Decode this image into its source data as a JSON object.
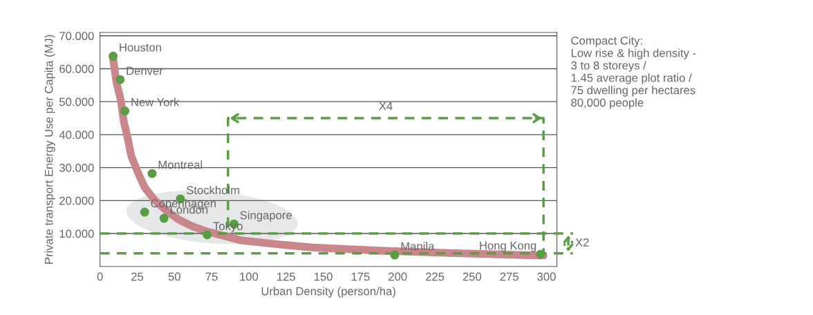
{
  "chart_data": {
    "type": "scatter",
    "xlabel": "Urban Density (person/ha)",
    "ylabel": "Private transport Energy Use per Capita (MJ)",
    "xlim": [
      0,
      307
    ],
    "xticks": [
      0,
      25,
      50,
      75,
      100,
      125,
      150,
      175,
      200,
      225,
      250,
      275,
      300
    ],
    "ylim": [
      0,
      71
    ],
    "yticks": [
      {
        "value": 10,
        "label": "10.000"
      },
      {
        "value": 20,
        "label": "20.000"
      },
      {
        "value": 30,
        "label": "30.000"
      },
      {
        "value": 40,
        "label": "40.000"
      },
      {
        "value": 50,
        "label": "50.000"
      },
      {
        "value": 60,
        "label": "60.000"
      },
      {
        "value": 70,
        "label": "70.000"
      }
    ],
    "grid": "y",
    "legend": false,
    "marker": "circle",
    "series": [
      {
        "type": "line",
        "marker": "none",
        "color": "#c9878c",
        "x": [
          8.8,
          11,
          14,
          16,
          18.6,
          21,
          25.6,
          30,
          37,
          45,
          53,
          62,
          72,
          95,
          120,
          142,
          188,
          235,
          298
        ],
        "values": [
          63,
          56,
          50.4,
          44,
          38.9,
          33.5,
          28.4,
          24,
          20,
          16.8,
          14.2,
          12.2,
          10.6,
          7.9,
          6.7,
          5.8,
          4.8,
          4.1,
          3.3
        ]
      },
      {
        "name": "Houston",
        "color": "#5a9e44",
        "x": [
          8.8
        ],
        "values": [
          63.8
        ]
      },
      {
        "name": "Denver",
        "color": "#5a9e44",
        "x": [
          13.5
        ],
        "values": [
          56.7
        ]
      },
      {
        "name": "New York",
        "color": "#5a9e44",
        "x": [
          16.7
        ],
        "values": [
          47.2
        ]
      },
      {
        "name": "Montreal",
        "color": "#5a9e44",
        "x": [
          35
        ],
        "values": [
          28.2
        ]
      },
      {
        "name": "Stockholm",
        "color": "#5a9e44",
        "x": [
          54
        ],
        "values": [
          20.5
        ]
      },
      {
        "name": "Copenhagen",
        "color": "#5a9e44",
        "x": [
          30
        ],
        "values": [
          16.5
        ]
      },
      {
        "name": "London",
        "color": "#5a9e44",
        "x": [
          43
        ],
        "values": [
          14.6
        ]
      },
      {
        "name": "Tokyo",
        "color": "#5a9e44",
        "x": [
          72
        ],
        "values": [
          9.6
        ]
      },
      {
        "name": "Singapore",
        "color": "#5a9e44",
        "x": [
          90
        ],
        "values": [
          12.9
        ]
      },
      {
        "name": "Manila",
        "color": "#5a9e44",
        "x": [
          198
        ],
        "values": [
          3.5
        ]
      },
      {
        "name": "Hong Kong",
        "color": "#5a9e44",
        "x": [
          296
        ],
        "values": [
          3.7
        ]
      },
      {
        "type": "line",
        "marker": "none",
        "line_style": "dashed",
        "color": "#5a9e44",
        "x": [
          86,
          86,
          298,
          298
        ],
        "values": [
          12,
          45,
          45,
          4
        ]
      }
    ],
    "ref_lines": [
      {
        "axis": "y",
        "value": 10,
        "color": "#5a9e44",
        "line_style": "dashed"
      },
      {
        "axis": "y",
        "value": 4,
        "color": "#5a9e44",
        "line_style": "dashed"
      }
    ],
    "annotations": [
      {
        "text": "X4",
        "x": 192,
        "y": 45
      },
      "X2",
      "Compact City:\nLow rise & high density -\n3 to 8 storeys /\n1.45 average plot ratio /\n75 dwelling per hectares\n80,000 people"
    ]
  }
}
